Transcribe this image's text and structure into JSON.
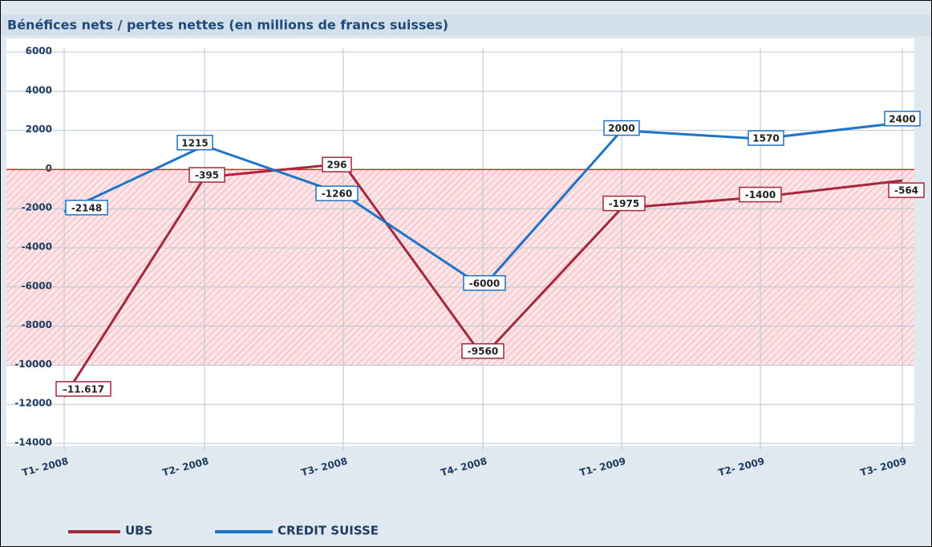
{
  "chart_data": {
    "type": "line",
    "title": "Bénéfices nets / pertes nettes (en millions de francs suisses)",
    "categories": [
      "T1- 2008",
      "T2- 2008",
      "T3- 2008",
      "T4- 2008",
      "T1- 2009",
      "T2- 2009",
      "T3- 2009"
    ],
    "series": [
      {
        "name": "UBS",
        "color": "#a3283c",
        "values": [
          -11617,
          -395,
          296,
          -9560,
          -1975,
          -1400,
          -564
        ],
        "value_labels": [
          "–11.617",
          "-395",
          "296",
          "-9560",
          "-1975",
          "-1400",
          "-564"
        ]
      },
      {
        "name": "CREDIT SUISSE",
        "color": "#1f74c8",
        "values": [
          -2148,
          1215,
          -1260,
          -6000,
          2000,
          1570,
          2400
        ],
        "value_labels": [
          "-2148",
          "1215",
          "-1260",
          "-6000",
          "2000",
          "1570",
          "2400"
        ]
      }
    ],
    "ylim": [
      -14000,
      6000
    ],
    "yticks": [
      -14000,
      -12000,
      -10000,
      -8000,
      -6000,
      -4000,
      -2000,
      0,
      2000,
      4000,
      6000
    ],
    "grid": true,
    "zero_line_color": "#e0242c",
    "shaded_band": [
      -10000,
      0
    ],
    "legend": "bottom-left"
  }
}
